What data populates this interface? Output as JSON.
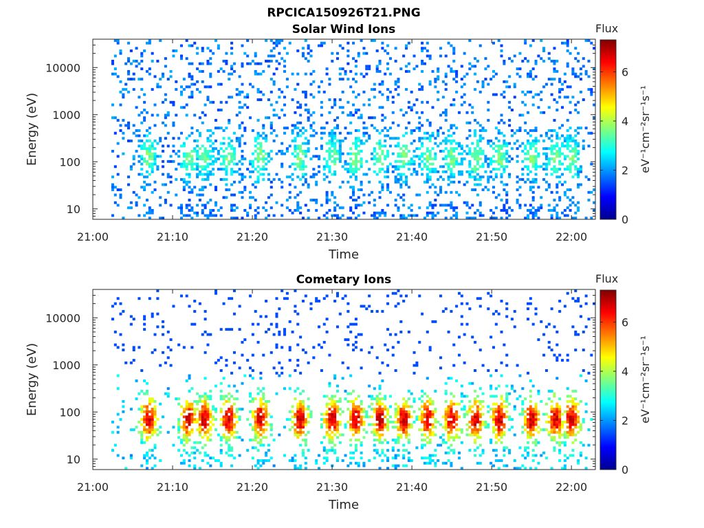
{
  "figure": {
    "filename_title": "RPCICA150926T21.PNG"
  },
  "chart_data": [
    {
      "type": "heatmap",
      "title": "Solar Wind Ions",
      "xlabel": "Time",
      "ylabel": "Energy (eV)",
      "x_ticks": [
        "21:00",
        "21:10",
        "21:20",
        "21:30",
        "21:40",
        "21:50",
        "22:00"
      ],
      "y_scale": "log",
      "y_ticks": [
        "10",
        "100",
        "1000",
        "10000"
      ],
      "ylim": [
        6,
        40000
      ],
      "xlim": [
        "21:00",
        "22:03"
      ],
      "colorbar": {
        "label": "Flux",
        "units": "eV⁻¹cm⁻²sr⁻¹s⁻¹",
        "ticks": [
          "0",
          "2",
          "4",
          "6"
        ],
        "range": [
          0,
          7.3
        ],
        "colormap": "jet"
      },
      "profile": "solar-wind",
      "seed": 11
    },
    {
      "type": "heatmap",
      "title": "Cometary Ions",
      "xlabel": "Time",
      "ylabel": "Energy (eV)",
      "x_ticks": [
        "21:00",
        "21:10",
        "21:20",
        "21:30",
        "21:40",
        "21:50",
        "22:00"
      ],
      "y_scale": "log",
      "y_ticks": [
        "10",
        "100",
        "1000",
        "10000"
      ],
      "ylim": [
        6,
        40000
      ],
      "xlim": [
        "21:00",
        "22:03"
      ],
      "colorbar": {
        "label": "Flux",
        "units": "eV⁻¹cm⁻²sr⁻¹s⁻¹",
        "ticks": [
          "0",
          "2",
          "4",
          "6"
        ],
        "range": [
          0,
          7.3
        ],
        "colormap": "jet"
      },
      "profile": "cometary",
      "seed": 29
    }
  ]
}
